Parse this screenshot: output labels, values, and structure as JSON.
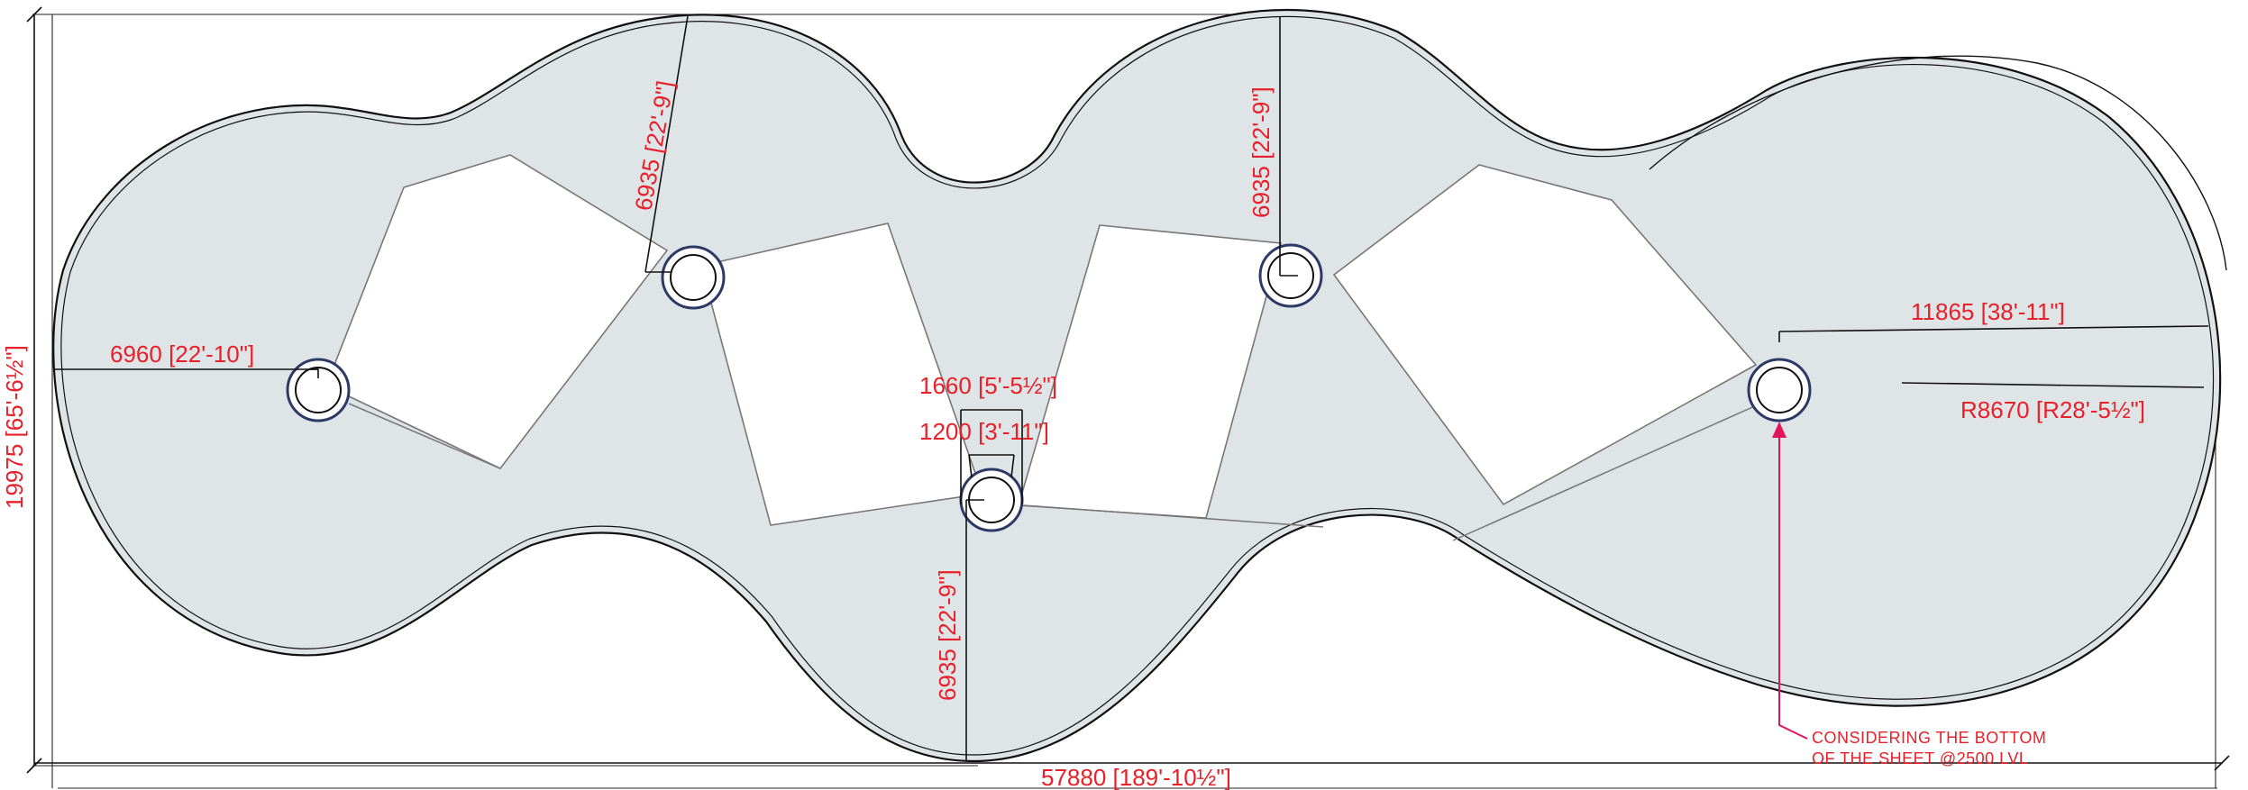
{
  "drawing": {
    "canopy_fill": "#dfe4e7",
    "outline_color": "#111111",
    "dimension_color": "#e8202a",
    "note_color": "#e0155a"
  },
  "dimensions": {
    "overall_height": "19975 [65'-6½\"]",
    "overall_width": "57880 [189'-10½\"]",
    "radius_left": "6960 [22'-10\"]",
    "radius_top_left": "6935 [22'-9\"]",
    "radius_top_mid": "6935 [22'-9\"]",
    "radius_bottom": "6935 [22'-9\"]",
    "outer_width_column": "1660 [5'-5½\"]",
    "inner_width_column": "1200 [3'-11\"]",
    "radius_right": "11865 [38'-11\"]",
    "radius_right_alt": "R8670 [R28'-5½\"]"
  },
  "note": {
    "line1": "CONSIDERING THE BOTTOM",
    "line2": "OF THE SHEET @2500 LVL"
  }
}
